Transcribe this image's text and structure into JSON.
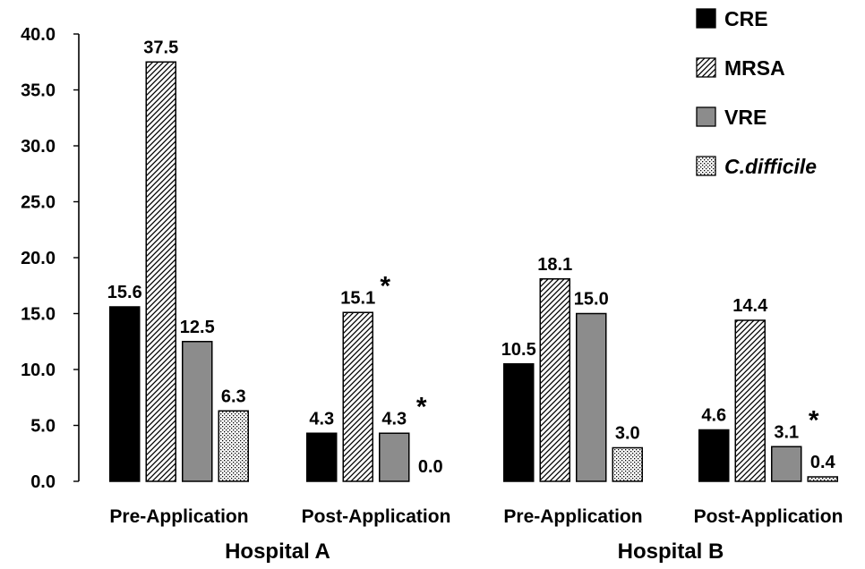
{
  "chart_data": {
    "type": "bar",
    "ylim": [
      0,
      40
    ],
    "yticks": [
      "0.0",
      "5.0",
      "10.0",
      "15.0",
      "20.0",
      "25.0",
      "30.0",
      "35.0",
      "40.0"
    ],
    "groups": [
      {
        "label": "Hospital A",
        "categories": [
          "Pre-Application",
          "Post-Application"
        ]
      },
      {
        "label": "Hospital B",
        "categories": [
          "Pre-Application",
          "Post-Application"
        ]
      }
    ],
    "series": [
      {
        "name": "CRE",
        "fill": "solid-black",
        "values": [
          15.6,
          4.3,
          10.5,
          4.6
        ],
        "labels": [
          "15.6",
          "4.3",
          "10.5",
          "4.6"
        ]
      },
      {
        "name": "MRSA",
        "fill": "diagonal-hatch",
        "values": [
          37.5,
          15.1,
          18.1,
          14.4
        ],
        "labels": [
          "37.5",
          "15.1",
          "18.1",
          "14.4"
        ]
      },
      {
        "name": "VRE",
        "fill": "gray",
        "values": [
          12.5,
          4.3,
          15.0,
          3.1
        ],
        "labels": [
          "12.5",
          "4.3",
          "15.0",
          "3.1"
        ]
      },
      {
        "name": "C.difficile",
        "italic": true,
        "fill": "dotted",
        "values": [
          6.3,
          0.0,
          3.0,
          0.4
        ],
        "labels": [
          "6.3",
          "0.0",
          "3.0",
          "0.4"
        ]
      }
    ],
    "significance_marks": [
      {
        "series": 1,
        "category": 1,
        "mark": "*"
      },
      {
        "series": 2,
        "category": 1,
        "mark": "*"
      },
      {
        "series": 2,
        "category": 3,
        "mark": "*"
      }
    ],
    "legend_position": "top-right",
    "grid": false,
    "colors": {
      "cre": "#000000",
      "vre": "#8c8c8c",
      "outline": "#000000"
    }
  }
}
